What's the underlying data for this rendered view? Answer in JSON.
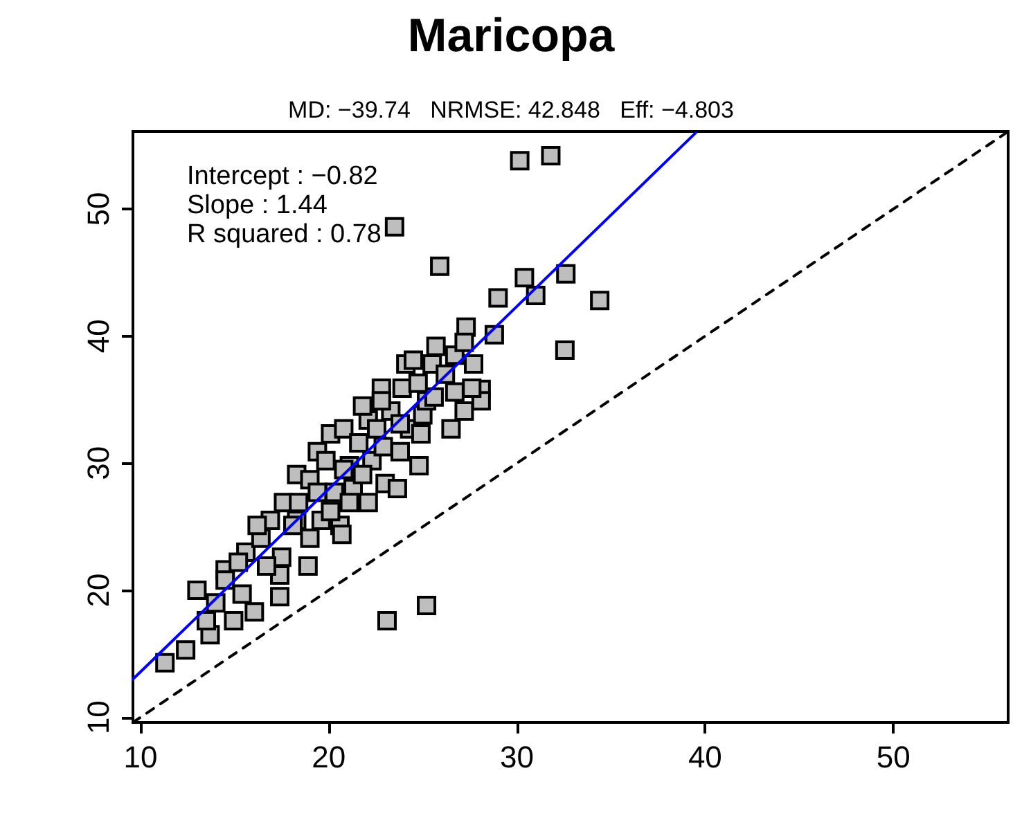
{
  "chart_data": {
    "type": "scatter",
    "title": "Maricopa",
    "subtitle": "MD: −39.74   NRMSE: 42.848   Eff: −4.803",
    "annotations": [
      "Intercept : −0.82",
      "Slope : 1.44",
      "R squared : 0.78"
    ],
    "xlim": [
      9.6,
      56.1
    ],
    "ylim": [
      9.6,
      56.1
    ],
    "xticks": [
      10,
      20,
      30,
      40,
      50
    ],
    "yticks": [
      10,
      20,
      30,
      40,
      50
    ],
    "grid": false,
    "marker": "square",
    "series": [
      {
        "color": "#bebebe",
        "x": [
          30.15,
          31.8,
          23.5,
          25.9,
          30.4,
          32.6,
          29.0,
          31.0,
          34.4,
          32.55,
          28.8,
          27.3,
          23.1,
          25.2,
          11.3,
          12.4,
          13.7,
          13.0,
          14.5,
          14.0,
          14.95,
          16.05,
          15.4,
          15.6,
          17.4,
          16.4,
          17.5,
          17.4,
          16.9,
          17.6,
          18.3,
          19.0,
          18.9,
          18.3,
          19.0,
          18.4,
          19.6,
          19.4,
          19.85,
          20.1,
          20.3,
          20.6,
          21.3,
          21.1,
          20.8,
          21.6,
          22.1,
          21.8,
          22.3,
          22.1,
          23.0,
          22.9,
          22.8,
          23.3,
          23.65,
          23.8,
          23.9,
          24.1,
          24.3,
          24.9,
          24.8,
          25.0,
          25.2,
          25.6,
          25.5,
          25.7,
          26.5,
          26.7,
          26.7,
          27.2,
          27.7,
          28.1,
          28.1,
          27.6,
          26.2,
          24.75,
          27.2,
          20.8,
          21.8,
          21.1,
          19.4,
          20.1,
          20.7,
          22.55,
          23.8,
          22.8,
          24.5,
          18.1,
          16.2,
          15.2,
          16.7,
          14.5,
          13.5
        ],
        "values": [
          53.8,
          54.2,
          48.6,
          45.5,
          44.6,
          44.9,
          43.0,
          43.2,
          42.8,
          38.9,
          40.1,
          40.7,
          17.6,
          18.8,
          14.3,
          15.3,
          16.5,
          20.0,
          21.6,
          19.0,
          17.6,
          18.3,
          19.7,
          23.0,
          19.5,
          24.1,
          22.6,
          21.2,
          25.5,
          26.9,
          25.5,
          24.1,
          21.9,
          29.1,
          28.7,
          26.9,
          25.5,
          30.9,
          30.2,
          32.3,
          27.7,
          25.1,
          28.0,
          29.8,
          32.7,
          31.6,
          33.4,
          34.5,
          30.2,
          26.9,
          28.4,
          31.3,
          35.9,
          34.1,
          28.0,
          30.9,
          35.9,
          37.8,
          32.7,
          32.3,
          29.8,
          33.8,
          34.9,
          35.2,
          37.8,
          39.2,
          32.7,
          35.6,
          38.5,
          34.1,
          37.8,
          35.8,
          34.9,
          35.9,
          37.0,
          36.3,
          39.5,
          29.5,
          29.1,
          26.9,
          27.7,
          26.2,
          24.4,
          32.7,
          33.1,
          34.9,
          38.1,
          25.1,
          25.1,
          22.2,
          21.9,
          20.8,
          17.6
        ]
      },
      {
        "type": "line",
        "color": "#0000ff",
        "marker": "none",
        "line_style": "solid",
        "x": [
          9.6,
          39.5
        ],
        "values": [
          13.0,
          56.0
        ]
      },
      {
        "type": "line",
        "color": "#000000",
        "marker": "none",
        "line_style": "dashed",
        "x": [
          9.6,
          56.1
        ],
        "values": [
          9.6,
          56.1
        ]
      }
    ]
  }
}
